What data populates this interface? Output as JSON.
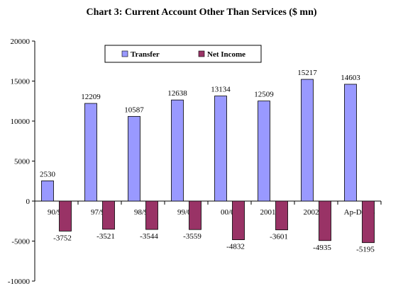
{
  "chart_data": {
    "type": "bar",
    "title": "Chart 3: Current Account Other Than Services ($ mn)",
    "categories": [
      "90/91",
      "97/98",
      "98/99",
      "99/00",
      "00/01",
      "2001/02",
      "2002/03",
      "Ap-De 03"
    ],
    "series": [
      {
        "name": "Transfer",
        "color": "#9999ff",
        "values": [
          2530,
          12209,
          10587,
          12638,
          13134,
          12509,
          15217,
          14603
        ]
      },
      {
        "name": "Net Income",
        "color": "#993366",
        "values": [
          -3752,
          -3521,
          -3544,
          -3559,
          -4832,
          -3601,
          -4935,
          -5195
        ]
      }
    ],
    "y_ticks": [
      "20000",
      "15000",
      "10000",
      "5000",
      "0",
      "-5000",
      "-10000"
    ],
    "ylim": [
      -10000,
      20000
    ],
    "xlabel": "",
    "ylabel": "",
    "grid": false,
    "legend_position": "top-left"
  }
}
